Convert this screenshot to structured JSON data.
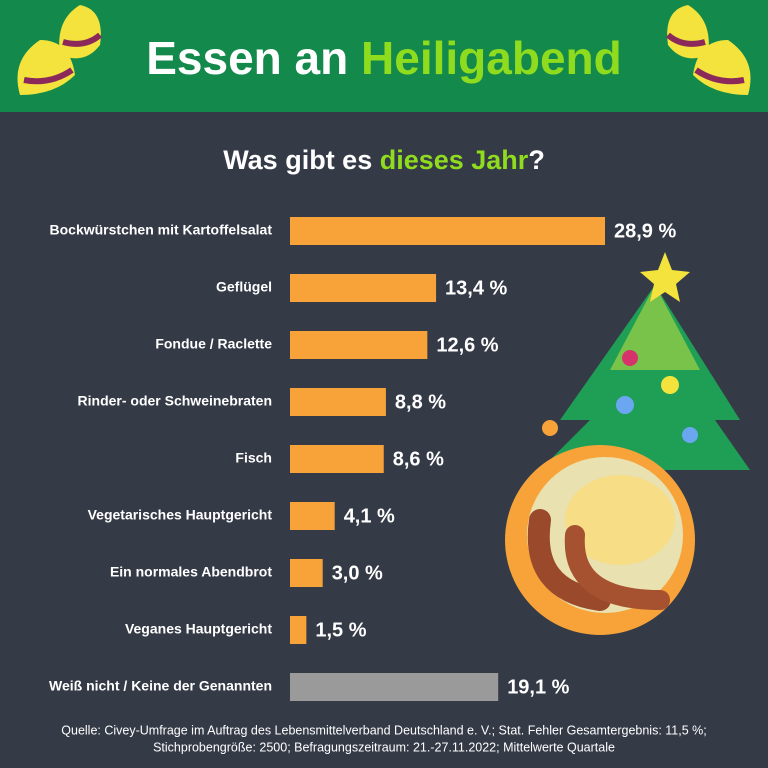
{
  "chart_data": {
    "type": "bar",
    "orientation": "horizontal",
    "title": [
      "Essen an ",
      "Heiligabend"
    ],
    "subtitle": [
      "Was gibt es ",
      "dieses Jahr",
      "?"
    ],
    "categories": [
      "Bockwürstchen mit Kartoffelsalat",
      "Geflügel",
      "Fondue / Raclette",
      "Rinder- oder Schweinebraten",
      "Fisch",
      "Vegetarisches Hauptgericht",
      "Ein normales Abendbrot",
      "Veganes Hauptgericht",
      "Weiß nicht / Keine der Genannten"
    ],
    "values": [
      28.9,
      13.4,
      12.6,
      8.8,
      8.6,
      4.1,
      3.0,
      1.5,
      19.1
    ],
    "value_labels": [
      "28,9 %",
      "13,4 %",
      "12,6 %",
      "8,8 %",
      "8,6 %",
      "4,1 %",
      "3,0 %",
      "1,5 %",
      "19,1 %"
    ],
    "colors": [
      "#f7a33a",
      "#f7a33a",
      "#f7a33a",
      "#f7a33a",
      "#f7a33a",
      "#f7a33a",
      "#f7a33a",
      "#f7a33a",
      "#9a9a9a"
    ],
    "source": [
      "Quelle: Civey-Umfrage im Auftrag des Lebensmittelverband Deutschland e. V.; Stat. Fehler Gesamtergebnis: 11,5 %;",
      "Stichprobengröße: 2500; Befragungszeitraum: 21.-27.11.2022; Mittelwerte Quartale"
    ]
  }
}
